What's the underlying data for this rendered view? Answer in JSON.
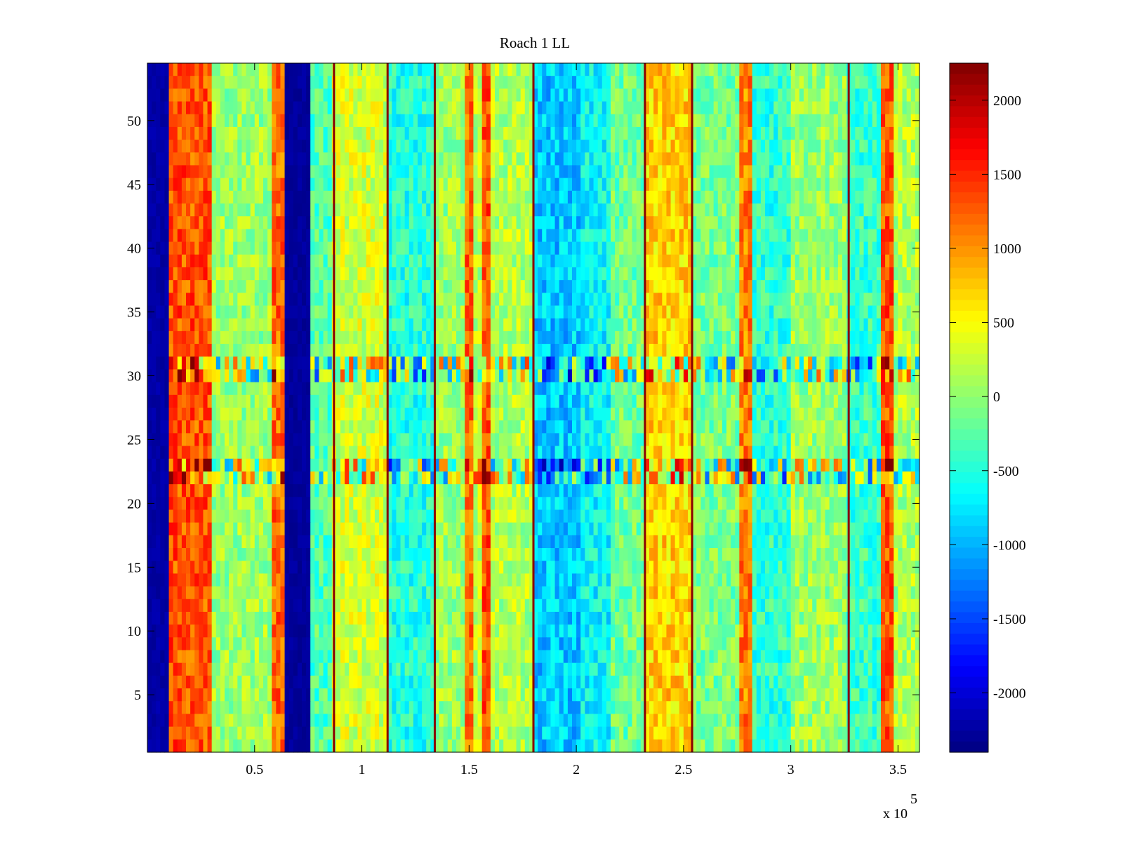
{
  "chart_data": {
    "type": "heatmap",
    "title": "Roach 1 LL",
    "xlabel": "",
    "ylabel": "",
    "x_multiplier_label": {
      "base": "x 10",
      "exponent": "5"
    },
    "xlim": [
      0,
      360000
    ],
    "ylim": [
      0.5,
      54.5
    ],
    "rows": 54,
    "x_ticks": [
      {
        "value": 50000,
        "label": "0.5"
      },
      {
        "value": 100000,
        "label": "1"
      },
      {
        "value": 150000,
        "label": "1.5"
      },
      {
        "value": 200000,
        "label": "2"
      },
      {
        "value": 250000,
        "label": "2.5"
      },
      {
        "value": 300000,
        "label": "3"
      },
      {
        "value": 350000,
        "label": "3.5"
      }
    ],
    "y_ticks": [
      {
        "value": 5,
        "label": "5"
      },
      {
        "value": 10,
        "label": "10"
      },
      {
        "value": 15,
        "label": "15"
      },
      {
        "value": 20,
        "label": "20"
      },
      {
        "value": 25,
        "label": "25"
      },
      {
        "value": 30,
        "label": "30"
      },
      {
        "value": 35,
        "label": "35"
      },
      {
        "value": 40,
        "label": "40"
      },
      {
        "value": 45,
        "label": "45"
      },
      {
        "value": 50,
        "label": "50"
      }
    ],
    "colorbar": {
      "colormap": "jet",
      "clim": [
        -2400,
        2250
      ],
      "ticks": [
        {
          "value": 2000,
          "label": "2000"
        },
        {
          "value": 1500,
          "label": "1500"
        },
        {
          "value": 1000,
          "label": "1000"
        },
        {
          "value": 500,
          "label": "500"
        },
        {
          "value": 0,
          "label": "0"
        },
        {
          "value": -500,
          "label": "-500"
        },
        {
          "value": -1000,
          "label": "-1000"
        },
        {
          "value": -1500,
          "label": "-1500"
        },
        {
          "value": -2000,
          "label": "-2000"
        }
      ]
    },
    "column_profile": [
      {
        "x0": 0,
        "x1": 10000,
        "value": -2300
      },
      {
        "x0": 10000,
        "x1": 31000,
        "value": 1300
      },
      {
        "x0": 31000,
        "x1": 58000,
        "value": 50
      },
      {
        "x0": 58000,
        "x1": 64000,
        "value": 1200
      },
      {
        "x0": 64000,
        "x1": 76000,
        "value": -2350
      },
      {
        "x0": 76000,
        "x1": 87000,
        "value": -300
      },
      {
        "x0": 87000,
        "x1": 112000,
        "value": 300
      },
      {
        "x0": 112000,
        "x1": 134000,
        "value": -500
      },
      {
        "x0": 134000,
        "x1": 148000,
        "value": 50
      },
      {
        "x0": 148000,
        "x1": 152000,
        "value": 1200
      },
      {
        "x0": 152000,
        "x1": 157000,
        "value": 200
      },
      {
        "x0": 157000,
        "x1": 161000,
        "value": 1300
      },
      {
        "x0": 161000,
        "x1": 180000,
        "value": 150
      },
      {
        "x0": 180000,
        "x1": 203000,
        "value": -900
      },
      {
        "x0": 203000,
        "x1": 217000,
        "value": -650
      },
      {
        "x0": 217000,
        "x1": 232000,
        "value": -150
      },
      {
        "x0": 232000,
        "x1": 254000,
        "value": 700
      },
      {
        "x0": 254000,
        "x1": 277000,
        "value": -100
      },
      {
        "x0": 277000,
        "x1": 283000,
        "value": 1100
      },
      {
        "x0": 283000,
        "x1": 300000,
        "value": -450
      },
      {
        "x0": 300000,
        "x1": 327000,
        "value": 50
      },
      {
        "x0": 327000,
        "x1": 343000,
        "value": -400
      },
      {
        "x0": 343000,
        "x1": 348000,
        "value": 1300
      },
      {
        "x0": 348000,
        "x1": 360000,
        "value": 150
      }
    ],
    "thin_vertical_lines": [
      {
        "x": 87000,
        "value": 2200
      },
      {
        "x": 112000,
        "value": 2200
      },
      {
        "x": 134000,
        "value": 2200
      },
      {
        "x": 180000,
        "value": 2200
      },
      {
        "x": 232000,
        "value": 2200
      },
      {
        "x": 254000,
        "value": 2200
      },
      {
        "x": 327000,
        "value": 2200
      }
    ],
    "noisy_row_bands": [
      {
        "y0": 21.5,
        "y1": 23.5,
        "description_value": "high variance"
      },
      {
        "y0": 29.5,
        "y1": 31.5,
        "description_value": "sparse spikes"
      }
    ]
  }
}
